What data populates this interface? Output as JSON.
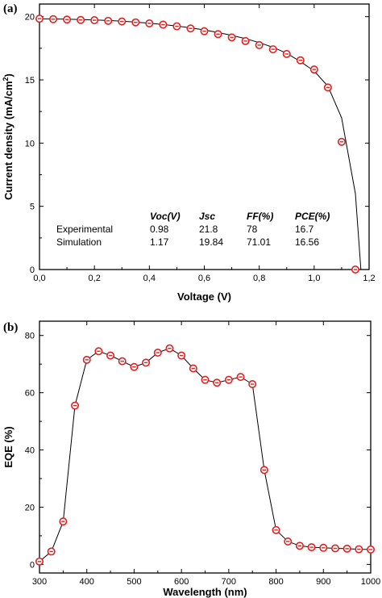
{
  "chart_data": [
    {
      "type": "line",
      "panel": "(a)",
      "xlabel": "Voltage (V)",
      "ylabel_main": "Current density (mA/cm",
      "ylabel_sup": "2",
      "ylabel_end": ")",
      "xlim": [
        0,
        1.2
      ],
      "ylim": [
        0,
        21
      ],
      "xticks": [
        0,
        0.2,
        0.4,
        0.6,
        0.8,
        1.0,
        1.2
      ],
      "xtick_labels": [
        "0,0",
        "0,2",
        "0,4",
        "0,6",
        "0,8",
        "1,0",
        "1,2"
      ],
      "yticks": [
        0,
        5,
        10,
        15,
        20
      ],
      "ytick_labels": [
        "0",
        "5",
        "10",
        "15",
        "20"
      ],
      "grid": false,
      "marker_color": "#e02020",
      "line_color": "#000000",
      "series": [
        {
          "line_x": [
            0,
            0.05,
            0.1,
            0.15,
            0.2,
            0.25,
            0.3,
            0.35,
            0.4,
            0.45,
            0.5,
            0.55,
            0.6,
            0.65,
            0.7,
            0.75,
            0.8,
            0.85,
            0.9,
            0.95,
            1.0,
            1.05,
            1.1,
            1.15,
            1.17
          ],
          "line_y": [
            19.84,
            19.82,
            19.8,
            19.77,
            19.74,
            19.7,
            19.64,
            19.57,
            19.48,
            19.38,
            19.26,
            19.12,
            18.95,
            18.75,
            18.52,
            18.26,
            17.95,
            17.58,
            17.1,
            16.45,
            15.7,
            14.5,
            12.0,
            6.0,
            0
          ],
          "marker_x": [
            0,
            0.05,
            0.1,
            0.15,
            0.2,
            0.25,
            0.3,
            0.35,
            0.4,
            0.45,
            0.5,
            0.55,
            0.6,
            0.65,
            0.7,
            0.75,
            0.8,
            0.85,
            0.9,
            0.95,
            1.0,
            1.05,
            1.1,
            1.15
          ],
          "marker_y": [
            19.84,
            19.8,
            19.77,
            19.74,
            19.72,
            19.67,
            19.62,
            19.55,
            19.47,
            19.37,
            19.24,
            19.07,
            18.85,
            18.62,
            18.36,
            18.07,
            17.75,
            17.42,
            17.05,
            16.55,
            15.82,
            14.4,
            10.1,
            0
          ]
        }
      ],
      "table": {
        "headers": [
          "",
          "Voc(V)",
          "Jsc",
          "FF(%)",
          "PCE(%)"
        ],
        "rows": [
          [
            "Experimental",
            "0.98",
            "21.8",
            "78",
            "16.7"
          ],
          [
            "Simulation",
            "1.17",
            "19.84",
            "71.01",
            "16.56"
          ]
        ]
      }
    },
    {
      "type": "line",
      "panel": "(b)",
      "xlabel": "Wavelength (nm)",
      "ylabel": "EQE (%)",
      "xlim": [
        300,
        1000
      ],
      "ylim": [
        -3,
        85
      ],
      "xticks": [
        300,
        400,
        500,
        600,
        700,
        800,
        900,
        1000
      ],
      "xtick_labels": [
        "300",
        "400",
        "500",
        "600",
        "700",
        "800",
        "900",
        "1000"
      ],
      "yticks": [
        0,
        20,
        40,
        60,
        80
      ],
      "ytick_labels": [
        "0",
        "20",
        "40",
        "60",
        "80"
      ],
      "grid": false,
      "marker_color": "#e02020",
      "line_color": "#000000",
      "series": [
        {
          "x": [
            300,
            325,
            350,
            375,
            400,
            425,
            450,
            475,
            500,
            525,
            550,
            575,
            600,
            625,
            650,
            675,
            700,
            725,
            750,
            775,
            800,
            825,
            850,
            875,
            900,
            925,
            950,
            975,
            1000
          ],
          "y": [
            1,
            4.5,
            15,
            55.5,
            71.5,
            74.5,
            73,
            71,
            69,
            70.5,
            74,
            75.5,
            73,
            68.5,
            64.5,
            63.5,
            64.5,
            65.5,
            63,
            33,
            12,
            8,
            6.5,
            6,
            5.8,
            5.6,
            5.5,
            5.3,
            5.2
          ]
        }
      ]
    }
  ]
}
